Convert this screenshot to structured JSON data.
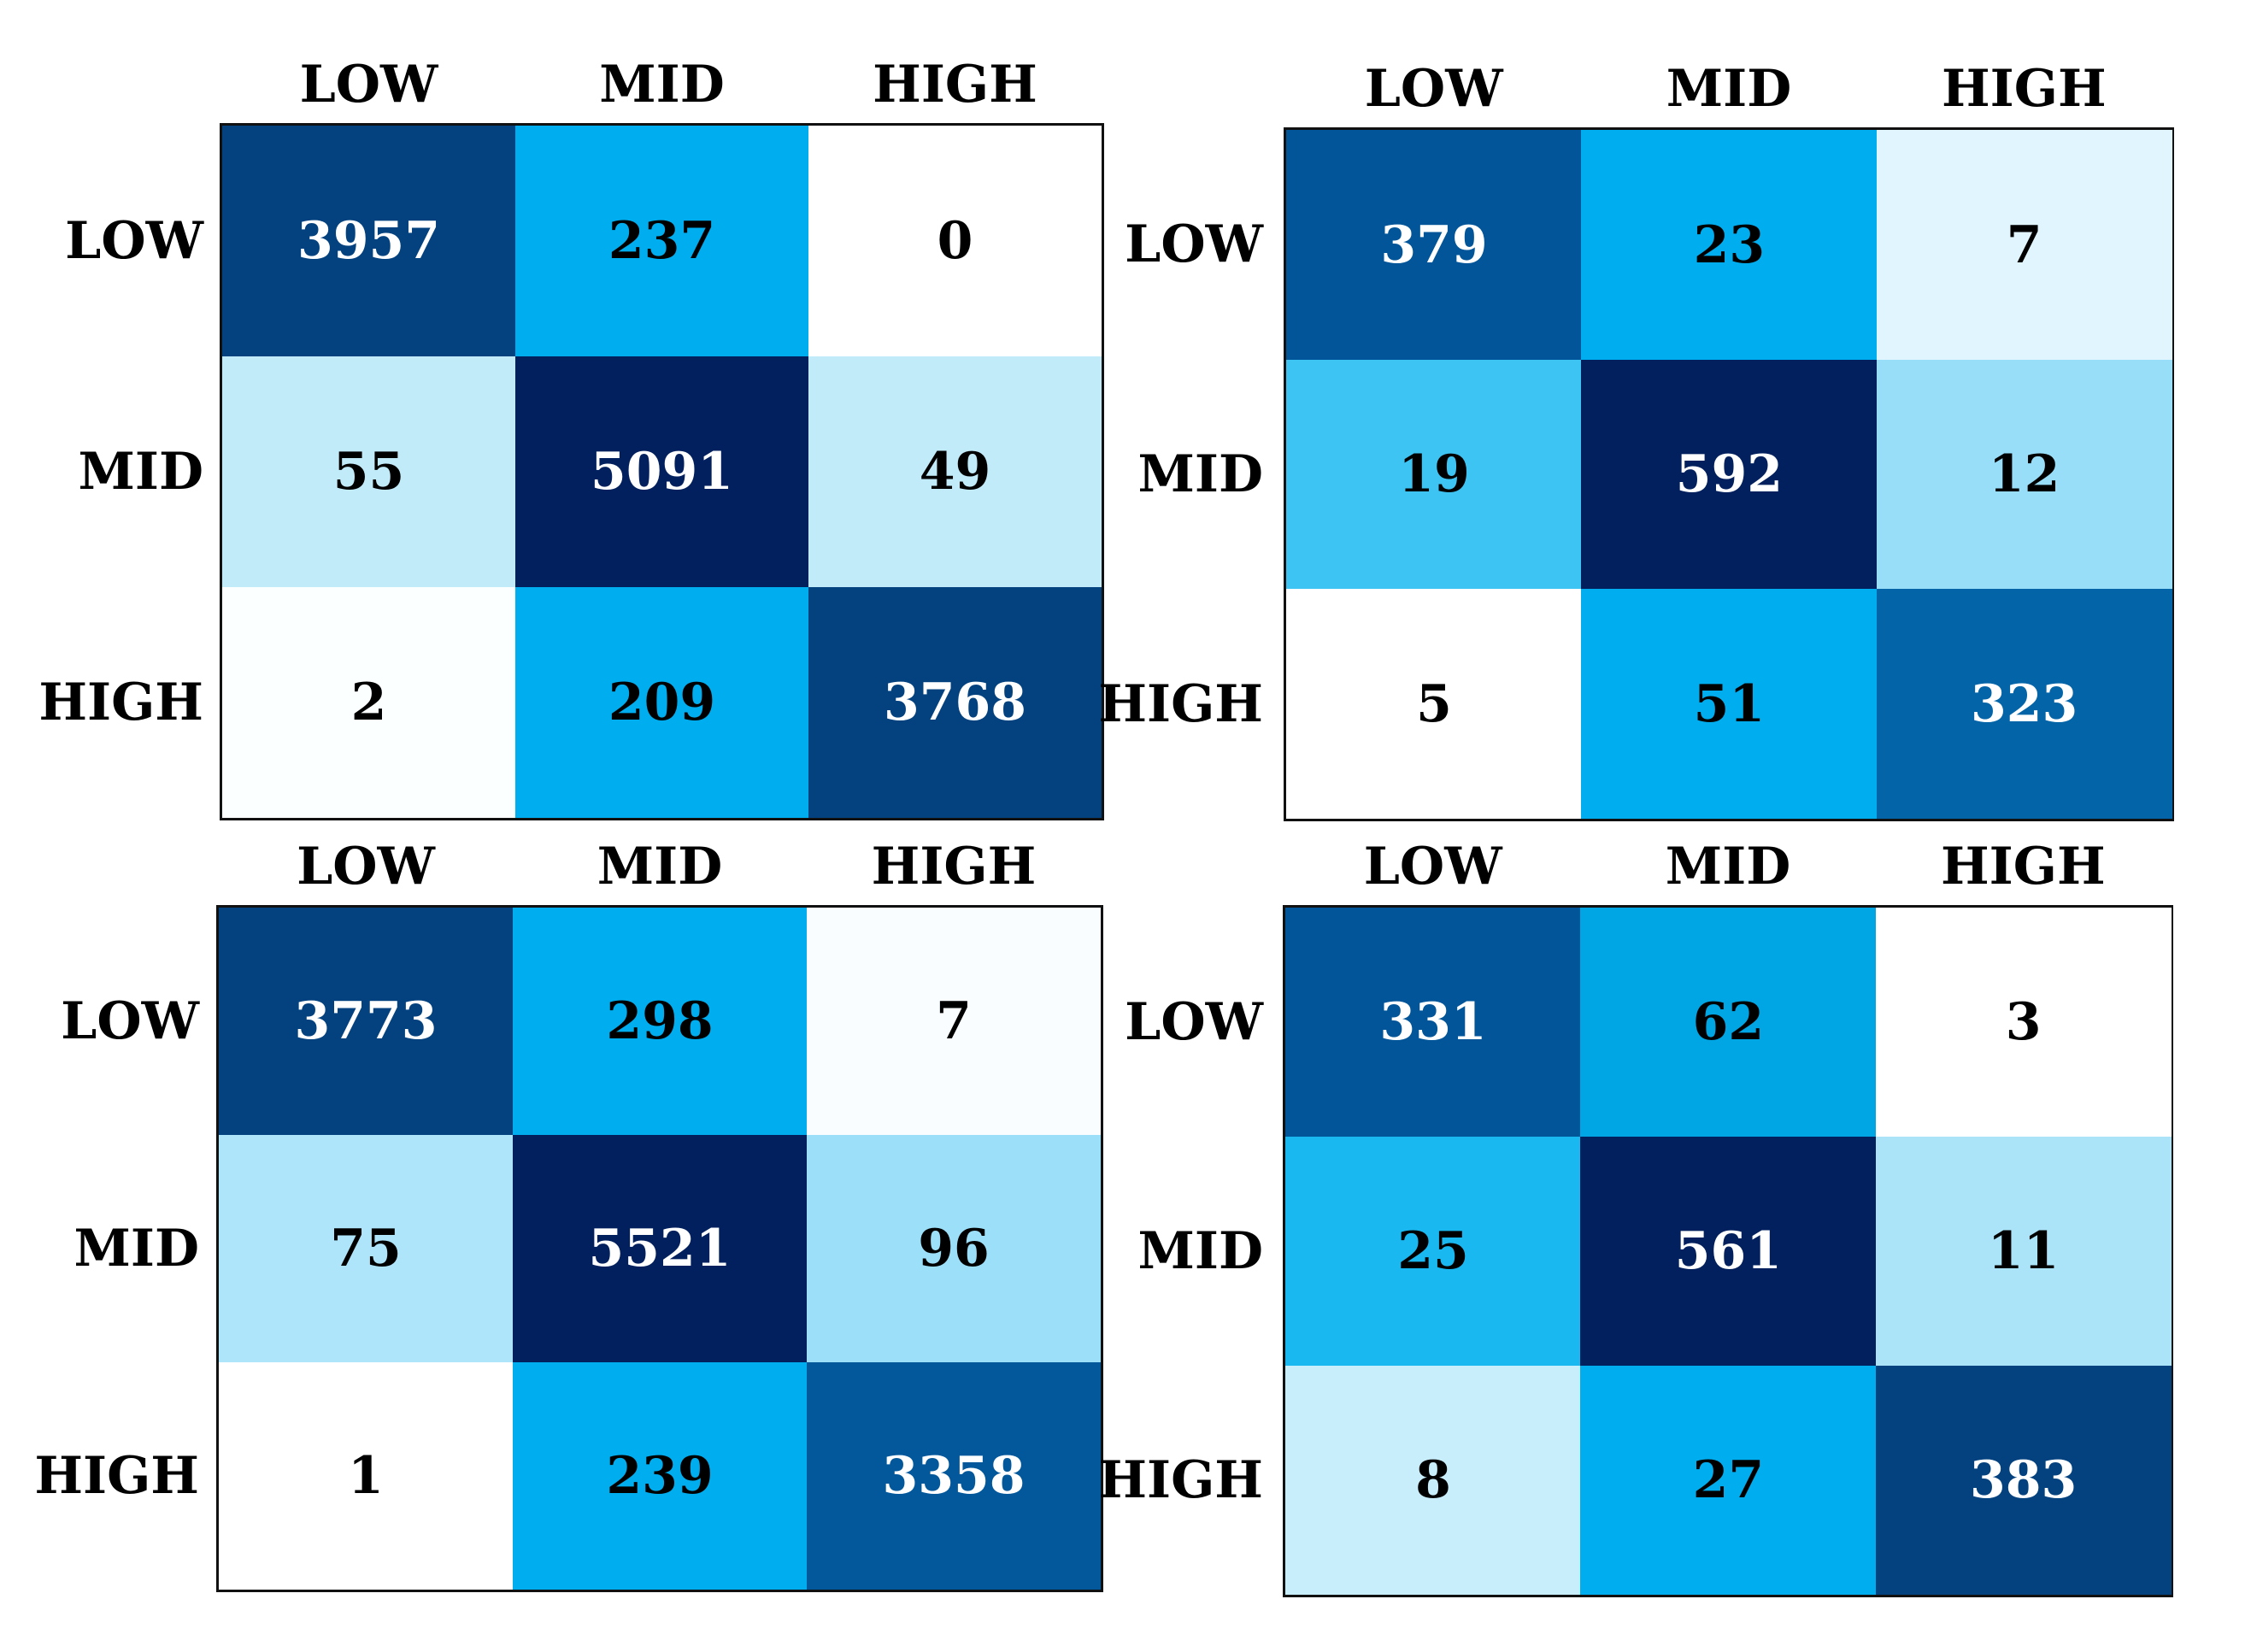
{
  "chart_data": [
    {
      "type": "heatmap",
      "x_labels": [
        "LOW",
        "MID",
        "HIGH"
      ],
      "y_labels": [
        "LOW",
        "MID",
        "HIGH"
      ],
      "values": [
        [
          3957,
          237,
          0
        ],
        [
          55,
          5091,
          49
        ],
        [
          2,
          209,
          3768
        ]
      ],
      "colors": [
        [
          "#04427f",
          "#00aeef",
          "#ffffff"
        ],
        [
          "#c2ebfa",
          "#02205d",
          "#c2ebfa"
        ],
        [
          "#fbffff",
          "#00aeef",
          "#04427f"
        ]
      ]
    },
    {
      "type": "heatmap",
      "x_labels": [
        "LOW",
        "MID",
        "HIGH"
      ],
      "y_labels": [
        "LOW",
        "MID",
        "HIGH"
      ],
      "values": [
        [
          379,
          23,
          7
        ],
        [
          19,
          592,
          12
        ],
        [
          5,
          51,
          323
        ]
      ],
      "colors": [
        [
          "#025598",
          "#00aeef",
          "#e0f5fd"
        ],
        [
          "#3dc4f3",
          "#02205d",
          "#99def8"
        ],
        [
          "#ffffff",
          "#00aeef",
          "#0364a8"
        ]
      ]
    },
    {
      "type": "heatmap",
      "x_labels": [
        "LOW",
        "MID",
        "HIGH"
      ],
      "y_labels": [
        "LOW",
        "MID",
        "HIGH"
      ],
      "values": [
        [
          3773,
          298,
          7
        ],
        [
          75,
          5521,
          96
        ],
        [
          1,
          239,
          3358
        ]
      ],
      "colors": [
        [
          "#04427f",
          "#00aeef",
          "#f9fdff"
        ],
        [
          "#aee5fa",
          "#02205d",
          "#9bdff8"
        ],
        [
          "#ffffff",
          "#00aeef",
          "#03589b"
        ]
      ]
    },
    {
      "type": "heatmap",
      "x_labels": [
        "LOW",
        "MID",
        "HIGH"
      ],
      "y_labels": [
        "LOW",
        "MID",
        "HIGH"
      ],
      "values": [
        [
          331,
          62,
          3
        ],
        [
          25,
          561,
          11
        ],
        [
          8,
          27,
          383
        ]
      ],
      "colors": [
        [
          "#025598",
          "#00a5e3",
          "#ffffff"
        ],
        [
          "#1ab8f0",
          "#02205d",
          "#abe4f9"
        ],
        [
          "#c8edfb",
          "#00aeef",
          "#04427f"
        ]
      ]
    }
  ],
  "text_colors": {
    "dark": "#000000",
    "light": "#ffffff"
  }
}
